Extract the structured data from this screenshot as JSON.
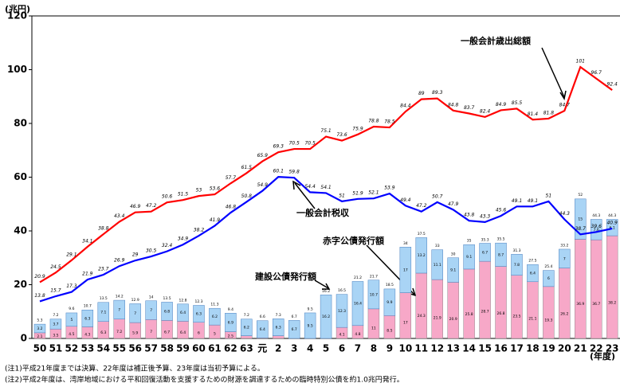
{
  "chart_data": {
    "type": "bar_line",
    "unit_label": "(兆円)",
    "x_label": "(年度)",
    "categories": [
      "50",
      "51",
      "52",
      "53",
      "54",
      "55",
      "56",
      "57",
      "58",
      "59",
      "60",
      "61",
      "62",
      "63",
      "元",
      "2",
      "3",
      "4",
      "5",
      "6",
      "7",
      "8",
      "9",
      "10",
      "11",
      "12",
      "13",
      "14",
      "15",
      "16",
      "17",
      "18",
      "19",
      "20",
      "21",
      "22",
      "23"
    ],
    "ylim": [
      0,
      120
    ],
    "yticks": [
      0,
      20,
      40,
      60,
      80,
      100,
      120
    ],
    "series": [
      {
        "name": "建設公債発行額",
        "kind": "bar",
        "color": "#a9d4f5",
        "values": [
          3.2,
          3.7,
          5.0,
          6.3,
          7.1,
          7.0,
          7.0,
          7.0,
          6.8,
          6.4,
          6.3,
          6.2,
          6.9,
          6.2,
          6.4,
          6.3,
          6.7,
          9.5,
          16.2,
          12.3,
          16.4,
          10.7,
          9.9,
          17.0,
          13.2,
          11.1,
          9.1,
          9.1,
          6.7,
          8.7,
          7.8,
          6.4,
          6.0,
          7.0,
          15.0,
          7.6,
          6.1
        ]
      },
      {
        "name": "赤字公債発行額",
        "kind": "bar",
        "color": "#f7a8c8",
        "values": [
          2.1,
          3.5,
          4.5,
          4.3,
          6.3,
          7.2,
          5.9,
          7.0,
          6.7,
          6.4,
          6.0,
          5.0,
          2.5,
          1.0,
          0.2,
          1.0,
          0,
          0,
          0,
          4.1,
          4.8,
          11.0,
          8.5,
          17.0,
          24.3,
          21.9,
          20.9,
          25.8,
          28.7,
          26.8,
          23.5,
          21.1,
          19.3,
          26.2,
          36.9,
          36.7,
          38.2
        ]
      },
      {
        "name": "一般会計歳出総額",
        "kind": "line",
        "color": "#ff0000",
        "values": [
          20.9,
          24.5,
          29.1,
          34.1,
          38.8,
          43.4,
          46.9,
          47.2,
          50.6,
          51.5,
          53.0,
          53.6,
          57.7,
          61.5,
          65.9,
          69.3,
          70.5,
          70.5,
          75.1,
          73.6,
          75.9,
          78.8,
          78.5,
          84.4,
          89.0,
          89.3,
          84.8,
          83.7,
          82.4,
          84.9,
          85.5,
          81.4,
          81.8,
          84.7,
          101.0,
          96.7,
          92.4
        ]
      },
      {
        "name": "一般会計税収",
        "kind": "line",
        "color": "#0000ff",
        "values": [
          13.8,
          15.7,
          17.3,
          21.9,
          23.7,
          26.9,
          29.0,
          30.5,
          32.4,
          34.9,
          38.2,
          41.9,
          46.8,
          50.8,
          54.9,
          60.1,
          59.8,
          54.4,
          54.1,
          51.0,
          51.9,
          52.1,
          53.9,
          49.4,
          47.2,
          50.7,
          47.9,
          43.8,
          43.3,
          45.6,
          49.1,
          49.1,
          51.0,
          44.3,
          38.7,
          39.6,
          40.9
        ]
      }
    ],
    "totals": [
      5.3,
      7.2,
      9.6,
      10.7,
      13.5,
      14.2,
      12.9,
      14.0,
      13.5,
      12.8,
      12.3,
      11.3,
      9.4,
      7.2,
      6.6,
      7.3,
      6.7,
      9.5,
      16.2,
      16.5,
      21.2,
      21.7,
      18.5,
      34.0,
      37.5,
      33.0,
      30.0,
      35.0,
      35.3,
      35.5,
      31.3,
      27.5,
      25.4,
      33.2,
      52.0,
      44.3,
      44.3
    ],
    "notes": [
      "(注1)平成21年度までは決算、22年度は補正後予算、23年度は当初予算による。",
      "(注2)平成2年度は、湾岸地域における平和回復活動を支援するための財源を調達するための臨時特別公債を約1.0兆円発行。"
    ]
  }
}
